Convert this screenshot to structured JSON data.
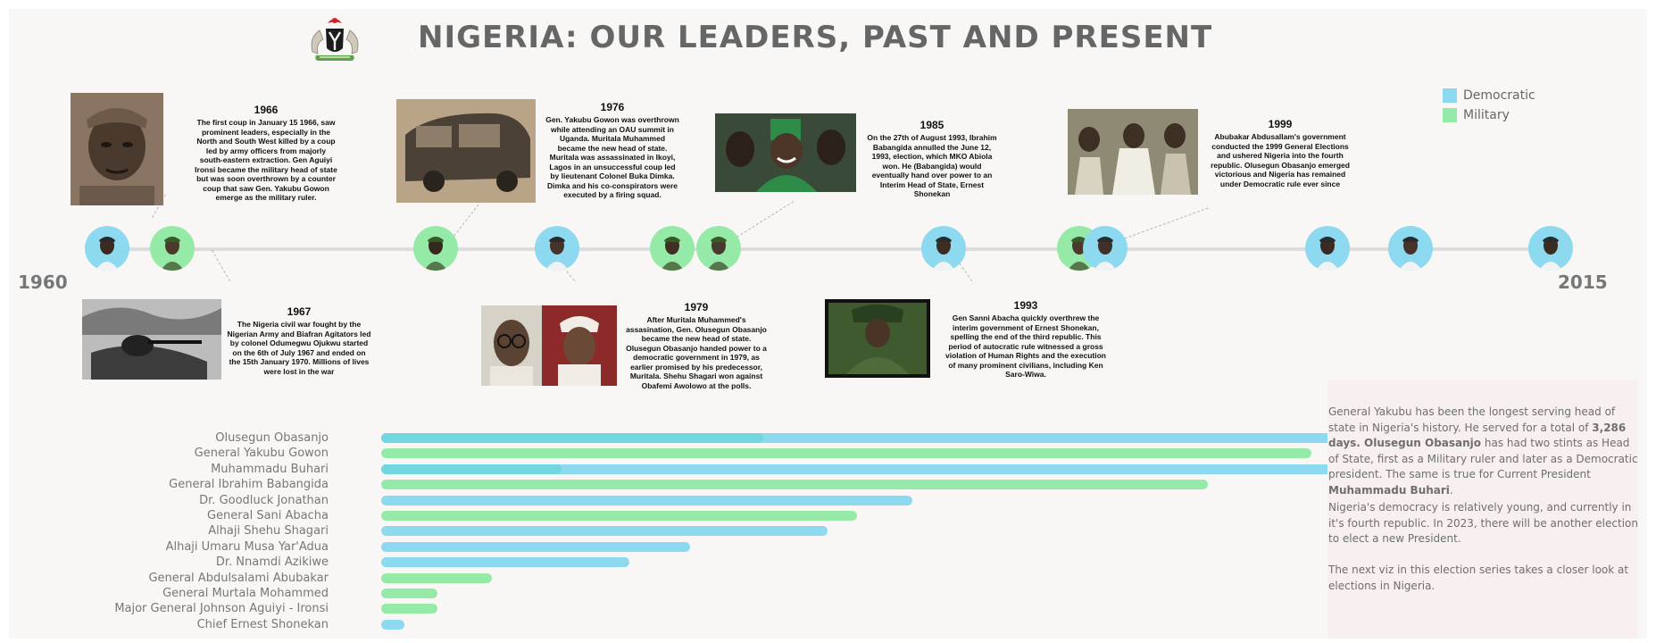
{
  "title": "NIGERIA: OUR LEADERS, PAST AND PRESENT",
  "timeline": {
    "start_label": "1960",
    "end_label": "2015"
  },
  "legend": [
    {
      "label": "Democratic",
      "color": "#8dd9f0"
    },
    {
      "label": "Military",
      "color": "#96eaa8"
    }
  ],
  "colors": {
    "democratic": "#8dd9f0",
    "democratic_dark": "#72d6e2",
    "military": "#96eaa8",
    "panel": "#f8f7f6"
  },
  "events": [
    {
      "year": "1966",
      "text": "The first coup in January 15 1966, saw prominent leaders, especially in the North and South West killed by a coup led by army officers from majorly south-eastern extraction. Gen Aguiyi Ironsi became the military head of state but was soon overthrown by a counter coup that saw Gen. Yakubu Gowon emerge as the military ruler."
    },
    {
      "year": "1967",
      "text": "The Nigeria civil war fought by the Nigerian Army and Biafran Agitators led by colonel Odumegwu Ojukwu started on the 6th of July 1967 and ended on the 15th January 1970.  Millions of lives were lost in the war"
    },
    {
      "year": "1976",
      "text": "Gen. Yakubu Gowon was overthrown while attending an OAU summit in Uganda. Muritala Muhammed became the new head of state. Muritala was assassinated in Ikoyi, Lagos in an unsuccessful coup led by lieutenant Colonel Buka Dimka. Dimka and his co-conspirators were executed by a firing squad."
    },
    {
      "year": "1979",
      "text": "After Muritala Muhammed's assasination, Gen. Olusegun Obasanjo became the new head of state. Olusegun Obasanjo handed power to a democratic government in 1979, as earlier promised by his predecessor, Muritala. Shehu Shagari won against Obafemi Awolowo at the polls."
    },
    {
      "year": "1985",
      "text": "On the 27th of August 1993, Ibrahim Babangida annulled the June 12, 1993, election, which MKO Abiola won. He (Babangida) would eventually hand over power to an Interim Head of State, Ernest Shonekan"
    },
    {
      "year": "1993",
      "text": "Gen Sanni Abacha quickly overthrew the interim government of Ernest Shonekan, spelling the end of the third republic. This period of autocratic rule witnessed a gross violation of Human Rights and the execution of many prominent civilians, including Ken Saro-Wiwa."
    },
    {
      "year": "1999",
      "text": "Abubakar Abdusallam's government conducted the 1999 General Elections and ushered Nigeria into the fourth republic. Olusegun Obasanjo emerged victorious and Nigeria has remained under Democratic rule ever since"
    }
  ],
  "timeline_nodes": [
    {
      "type": "Democratic"
    },
    {
      "type": "Military"
    },
    {
      "type": "Military"
    },
    {
      "type": "Democratic"
    },
    {
      "type": "Military"
    },
    {
      "type": "Military"
    },
    {
      "type": "Democratic"
    },
    {
      "type": "Military"
    },
    {
      "type": "Democratic"
    },
    {
      "type": "Democratic"
    },
    {
      "type": "Democratic"
    },
    {
      "type": "Democratic"
    }
  ],
  "chart_data": {
    "type": "bar",
    "orientation": "horizontal",
    "unit": "days",
    "categories": [
      "Olusegun Obasanjo",
      "General Yakubu Gowon",
      "Muhammadu Buhari",
      "General Ibrahim Babangida",
      "Dr. Goodluck Jonathan",
      "General Sani Abacha",
      "Alhaji Shehu Shagari",
      "Alhaji Umaru Musa Yar'Adua",
      "Dr. Nnamdi Azikiwe",
      "General Abdulsalami Abubakar",
      "General Murtala Mohammed",
      "Major General Johnson Aguiyi - Ironsi",
      "Chief Ernest Shonekan"
    ],
    "series": [
      {
        "name": "Military",
        "values": [
          1351,
          3286,
          638,
          2920,
          0,
          1682,
          0,
          0,
          0,
          390,
          200,
          200,
          0
        ]
      },
      {
        "name": "Democratic",
        "values": [
          2922,
          0,
          2850,
          0,
          1875,
          0,
          1578,
          1092,
          877,
          0,
          0,
          0,
          82
        ]
      }
    ],
    "xlim": [
      0,
      3286
    ],
    "grid": false
  },
  "notes": [
    {
      "runs": [
        {
          "text": "General Yakubu has been the longest serving head of state in Nigeria's history. He served for a total of ",
          "bold": false
        },
        {
          "text": "3,286 days. Olusegun Obasanjo",
          "bold": true
        },
        {
          "text": "  has had two stints as Head of State, first as a Military ruler and later as a Democratic president. The same is true for Current President ",
          "bold": false
        },
        {
          "text": "Muhammadu Buhari",
          "bold": true
        },
        {
          "text": ".",
          "bold": false
        }
      ]
    },
    {
      "runs": [
        {
          "text": "Nigeria's democracy is relatively young, and currently in it's fourth republic. In 2023, there will be another  election to elect a new President.",
          "bold": false
        }
      ]
    },
    {
      "runs": [
        {
          "text": "The next viz in this election series takes a closer look at elections in Nigeria.",
          "bold": false
        }
      ]
    }
  ]
}
